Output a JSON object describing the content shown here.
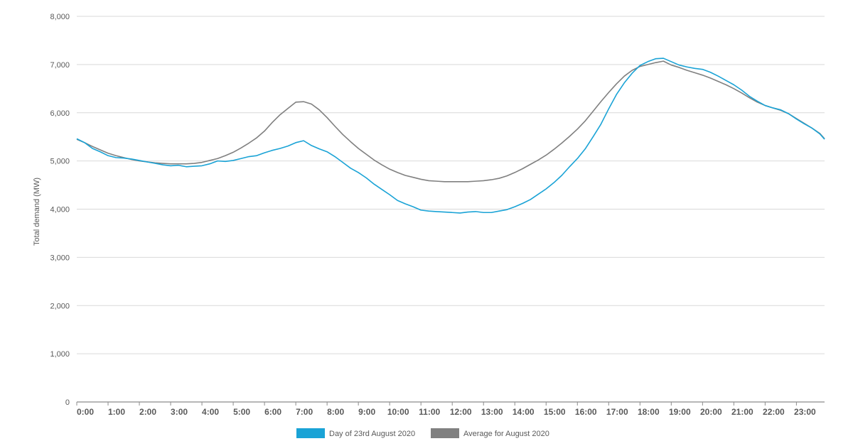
{
  "chart_data": {
    "type": "line",
    "ylabel": "Total demand (MW)",
    "xlabel": "",
    "ylim": [
      0,
      8000
    ],
    "yticks": [
      {
        "value": 0,
        "label": "0"
      },
      {
        "value": 1000,
        "label": "1,000"
      },
      {
        "value": 2000,
        "label": "2,000"
      },
      {
        "value": 3000,
        "label": "3,000"
      },
      {
        "value": 4000,
        "label": "4,000"
      },
      {
        "value": 5000,
        "label": "5,000"
      },
      {
        "value": 6000,
        "label": "6,000"
      },
      {
        "value": 7000,
        "label": "7,000"
      },
      {
        "value": 8000,
        "label": "8,000"
      }
    ],
    "xlim": [
      0,
      23.9
    ],
    "xticks": [
      {
        "value": 0,
        "label": "0:00"
      },
      {
        "value": 1,
        "label": "1:00"
      },
      {
        "value": 2,
        "label": "2:00"
      },
      {
        "value": 3,
        "label": "3:00"
      },
      {
        "value": 4,
        "label": "4:00"
      },
      {
        "value": 5,
        "label": "5:00"
      },
      {
        "value": 6,
        "label": "6:00"
      },
      {
        "value": 7,
        "label": "7:00"
      },
      {
        "value": 8,
        "label": "8:00"
      },
      {
        "value": 9,
        "label": "9:00"
      },
      {
        "value": 10,
        "label": "10:00"
      },
      {
        "value": 11,
        "label": "11:00"
      },
      {
        "value": 12,
        "label": "12:00"
      },
      {
        "value": 13,
        "label": "13:00"
      },
      {
        "value": 14,
        "label": "14:00"
      },
      {
        "value": 15,
        "label": "15:00"
      },
      {
        "value": 16,
        "label": "16:00"
      },
      {
        "value": 17,
        "label": "17:00"
      },
      {
        "value": 18,
        "label": "18:00"
      },
      {
        "value": 19,
        "label": "19:00"
      },
      {
        "value": 20,
        "label": "20:00"
      },
      {
        "value": 21,
        "label": "21:00"
      },
      {
        "value": 22,
        "label": "22:00"
      },
      {
        "value": 23,
        "label": "23:00"
      }
    ],
    "grid": true,
    "legend_position": "bottom",
    "series": [
      {
        "name": "Day of 23rd August 2020",
        "color": "#1aa3d6",
        "x": [
          0,
          0.25,
          0.5,
          0.75,
          1,
          1.25,
          1.5,
          1.75,
          2,
          2.25,
          2.5,
          2.75,
          3,
          3.25,
          3.5,
          3.75,
          4,
          4.25,
          4.5,
          4.75,
          5,
          5.25,
          5.5,
          5.75,
          6,
          6.25,
          6.5,
          6.75,
          7,
          7.25,
          7.5,
          7.75,
          8,
          8.25,
          8.5,
          8.75,
          9,
          9.25,
          9.5,
          9.75,
          10,
          10.25,
          10.5,
          10.75,
          11,
          11.25,
          11.5,
          11.75,
          12,
          12.25,
          12.5,
          12.75,
          13,
          13.25,
          13.5,
          13.75,
          14,
          14.25,
          14.5,
          14.75,
          15,
          15.25,
          15.5,
          15.75,
          16,
          16.25,
          16.5,
          16.75,
          17,
          17.25,
          17.5,
          17.75,
          18,
          18.25,
          18.5,
          18.75,
          19,
          19.25,
          19.5,
          19.75,
          20,
          20.25,
          20.5,
          20.75,
          21,
          21.25,
          21.5,
          21.75,
          22,
          22.25,
          22.5,
          22.75,
          23,
          23.25,
          23.5,
          23.75,
          23.9
        ],
        "values": [
          5460,
          5380,
          5260,
          5190,
          5110,
          5070,
          5060,
          5040,
          5010,
          4980,
          4950,
          4920,
          4900,
          4910,
          4880,
          4890,
          4900,
          4940,
          5000,
          4990,
          5010,
          5050,
          5090,
          5110,
          5170,
          5220,
          5260,
          5310,
          5380,
          5420,
          5320,
          5250,
          5190,
          5090,
          4970,
          4850,
          4760,
          4650,
          4520,
          4410,
          4300,
          4180,
          4110,
          4050,
          3980,
          3960,
          3950,
          3940,
          3930,
          3920,
          3940,
          3950,
          3930,
          3930,
          3960,
          3990,
          4050,
          4120,
          4200,
          4310,
          4420,
          4550,
          4700,
          4880,
          5050,
          5250,
          5500,
          5760,
          6080,
          6380,
          6620,
          6820,
          6980,
          7060,
          7120,
          7130,
          7060,
          6990,
          6950,
          6920,
          6900,
          6840,
          6760,
          6670,
          6580,
          6470,
          6340,
          6240,
          6150,
          6100,
          6060,
          5980,
          5870,
          5770,
          5680,
          5560,
          5450
        ]
      },
      {
        "name": "Average for August 2020",
        "color": "#808080",
        "x": [
          0,
          0.25,
          0.5,
          0.75,
          1,
          1.25,
          1.5,
          1.75,
          2,
          2.25,
          2.5,
          2.75,
          3,
          3.25,
          3.5,
          3.75,
          4,
          4.25,
          4.5,
          4.75,
          5,
          5.25,
          5.5,
          5.75,
          6,
          6.25,
          6.5,
          6.75,
          7,
          7.25,
          7.5,
          7.75,
          8,
          8.25,
          8.5,
          8.75,
          9,
          9.25,
          9.5,
          9.75,
          10,
          10.25,
          10.5,
          10.75,
          11,
          11.25,
          11.5,
          11.75,
          12,
          12.25,
          12.5,
          12.75,
          13,
          13.25,
          13.5,
          13.75,
          14,
          14.25,
          14.5,
          14.75,
          15,
          15.25,
          15.5,
          15.75,
          16,
          16.25,
          16.5,
          16.75,
          17,
          17.25,
          17.5,
          17.75,
          18,
          18.25,
          18.5,
          18.75,
          19,
          19.25,
          19.5,
          19.75,
          20,
          20.25,
          20.5,
          20.75,
          21,
          21.25,
          21.5,
          21.75,
          22,
          22.25,
          22.5,
          22.75,
          23,
          23.25,
          23.5,
          23.75,
          23.9
        ],
        "values": [
          5450,
          5380,
          5300,
          5230,
          5160,
          5110,
          5070,
          5030,
          5000,
          4980,
          4960,
          4950,
          4940,
          4940,
          4940,
          4950,
          4970,
          5010,
          5050,
          5110,
          5180,
          5270,
          5370,
          5480,
          5620,
          5800,
          5960,
          6090,
          6220,
          6230,
          6180,
          6060,
          5900,
          5720,
          5550,
          5400,
          5260,
          5140,
          5020,
          4920,
          4830,
          4760,
          4700,
          4660,
          4620,
          4590,
          4580,
          4570,
          4570,
          4570,
          4570,
          4580,
          4590,
          4610,
          4640,
          4690,
          4760,
          4840,
          4930,
          5020,
          5120,
          5240,
          5370,
          5510,
          5660,
          5830,
          6030,
          6230,
          6420,
          6600,
          6760,
          6880,
          6960,
          7000,
          7040,
          7070,
          6990,
          6940,
          6880,
          6830,
          6780,
          6720,
          6650,
          6580,
          6500,
          6410,
          6310,
          6220,
          6150,
          6100,
          6050,
          5980,
          5880,
          5780,
          5680,
          5570,
          5460
        ]
      }
    ]
  }
}
